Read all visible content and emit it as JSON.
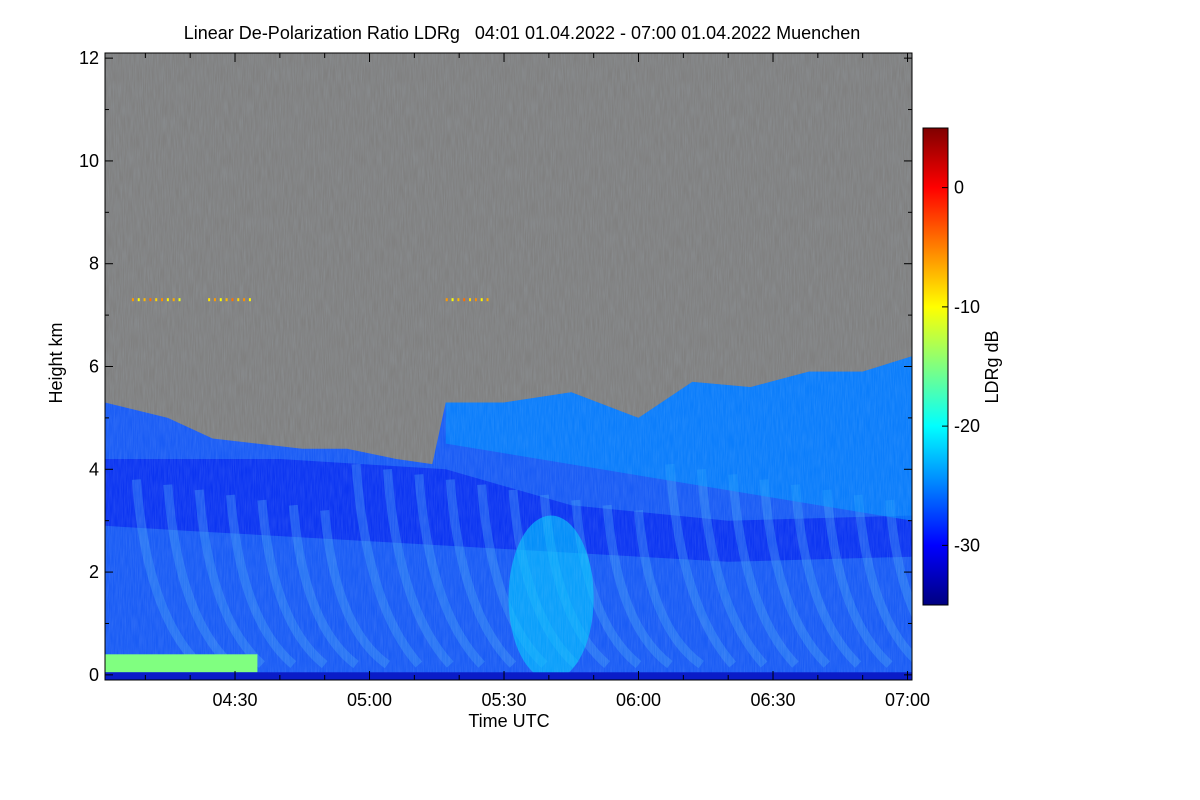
{
  "chart_data": {
    "type": "heatmap",
    "title": "Linear De-Polarization Ratio LDRg   04:01 01.04.2022 - 07:00 01.04.2022 Muenchen",
    "xlabel": "Time UTC",
    "ylabel": "Height km",
    "x_range_minutes": [
      241,
      421
    ],
    "x_tick_values_minutes": [
      270,
      300,
      330,
      360,
      390,
      420
    ],
    "x_tick_labels": [
      "04:30",
      "05:00",
      "05:30",
      "06:00",
      "06:30",
      "07:00"
    ],
    "y_range_km": [
      -0.1,
      12.1
    ],
    "y_tick_values": [
      0,
      2,
      4,
      6,
      8,
      10,
      12
    ],
    "y_tick_labels": [
      "0",
      "2",
      "4",
      "6",
      "8",
      "10",
      "12"
    ],
    "colorbar": {
      "label": "LDRg dB",
      "range_db": [
        -35,
        5
      ],
      "tick_values": [
        0,
        -10,
        -20,
        -30
      ],
      "tick_labels": [
        "0",
        "-10",
        "-20",
        "-30"
      ],
      "colormap": [
        "#000080",
        "#0000ff",
        "#0080ff",
        "#00ffff",
        "#80ff80",
        "#ffff00",
        "#ff8000",
        "#ff0000",
        "#800000"
      ]
    },
    "no_data_color": "#808080",
    "signal_top_profile": [
      {
        "t": 241,
        "h": 5.3
      },
      {
        "t": 255,
        "h": 5.0
      },
      {
        "t": 265,
        "h": 4.6
      },
      {
        "t": 275,
        "h": 4.5
      },
      {
        "t": 285,
        "h": 4.4
      },
      {
        "t": 295,
        "h": 4.4
      },
      {
        "t": 306,
        "h": 4.2
      },
      {
        "t": 314,
        "h": 4.1
      },
      {
        "t": 317,
        "h": 5.3
      },
      {
        "t": 330,
        "h": 5.3
      },
      {
        "t": 345,
        "h": 5.5
      },
      {
        "t": 360,
        "h": 5.0
      },
      {
        "t": 372,
        "h": 5.7
      },
      {
        "t": 385,
        "h": 5.6
      },
      {
        "t": 398,
        "h": 5.9
      },
      {
        "t": 410,
        "h": 5.9
      },
      {
        "t": 421,
        "h": 6.2
      }
    ],
    "layers": [
      {
        "name": "fall-streak layer",
        "t_start": 317,
        "t_end": 421,
        "bottom_km": [
          4.5,
          3.0
        ],
        "ldr_db": -24
      },
      {
        "name": "lower plume",
        "t_start": 331,
        "t_end": 350,
        "center_km": 1.5,
        "ldr_db": -22
      },
      {
        "name": "near-surface aerosol layer",
        "t_start": 241,
        "t_end": 275,
        "top_km": 0.4,
        "ldr_db": -15
      },
      {
        "name": "isolated cirrus points",
        "t_start": 247,
        "t_end": 327,
        "height_km": 7.3,
        "ldr_db": -8
      }
    ]
  }
}
